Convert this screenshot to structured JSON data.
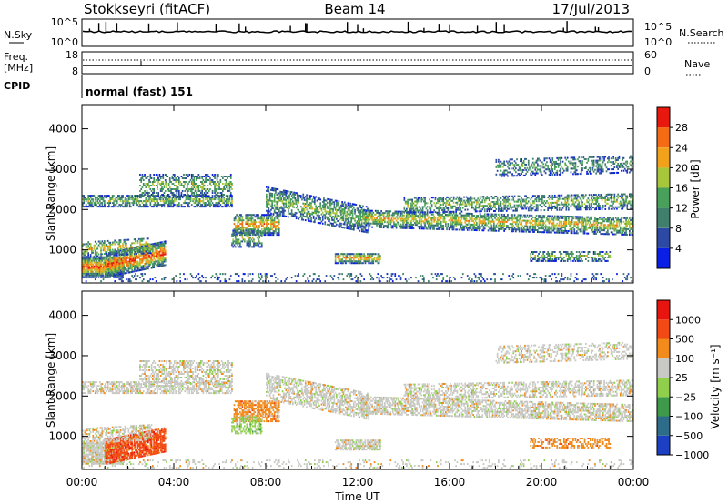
{
  "header": {
    "station": "Stokkseyri (fitACF)",
    "beam": "Beam 14",
    "date": "17/Jul/2013"
  },
  "left_labels": {
    "nsky": "N.Sky",
    "freq": "Freq.",
    "mhz": "[MHz]",
    "cpid": "CPID"
  },
  "right_labels": {
    "nsearch": "N.Search",
    "nave": "Nave"
  },
  "noise_axis": {
    "top_label": "10^5",
    "bottom_label": "10^0",
    "right_top_label": "10^5",
    "right_bottom_label": "10^0"
  },
  "freq_axis": {
    "top": "18",
    "bottom": "8",
    "right_top": "60",
    "right_bottom": "0"
  },
  "cpid_text": "normal (fast) 151",
  "chart_data": [
    {
      "type": "heatmap",
      "name": "power",
      "ylabel": "Slant Range [km]",
      "ylim": [
        180,
        4600
      ],
      "yticks": [
        "1000",
        "2000",
        "3000",
        "4000"
      ],
      "colorbar_label": "Power [dB]",
      "colorbar_ticks": [
        "4",
        "8",
        "12",
        "16",
        "20",
        "24",
        "28"
      ],
      "colors": [
        "#0a1fe6",
        "#2c4aa4",
        "#3f7f6c",
        "#48a05a",
        "#a8c63c",
        "#f2a21a",
        "#f36b12",
        "#e8180f"
      ]
    },
    {
      "type": "heatmap",
      "name": "velocity",
      "ylabel": "Slant Range [km]",
      "ylim": [
        180,
        4600
      ],
      "yticks": [
        "1000",
        "2000",
        "3000",
        "4000"
      ],
      "colorbar_label": "Velocity [m s⁻¹]",
      "colorbar_ticks": [
        "1000",
        "500",
        "100",
        "25",
        "−25",
        "−100",
        "−500",
        "−1000"
      ],
      "colors": [
        "#1d3fc4",
        "#2d6d8a",
        "#3e9a4a",
        "#8fcf4c",
        "#c8c8c4",
        "#f28a1c",
        "#f24a14",
        "#e8140f"
      ]
    }
  ],
  "time_axis": {
    "ticks": [
      "00:00",
      "04:00",
      "08:00",
      "12:00",
      "16:00",
      "20:00",
      "00:00"
    ],
    "label": "Time UT"
  }
}
